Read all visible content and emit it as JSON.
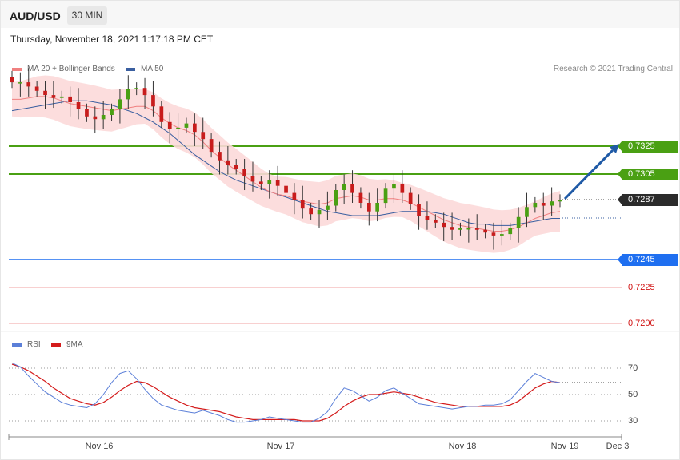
{
  "header": {
    "symbol": "AUD/USD",
    "timeframe": "30 MIN"
  },
  "datetime": "Thursday, November 18, 2021 1:17:18 PM CET",
  "legend": {
    "ma20": {
      "label": "MA 20 + Bollinger Bands",
      "color": "#f08080"
    },
    "ma50": {
      "label": "MA 50",
      "color": "#3a5fa0"
    }
  },
  "credit": "Research © 2021 Trading Central",
  "levels": {
    "r2": "0.7325",
    "r1": "0.7305",
    "last": "0.7287",
    "s1": "0.7245",
    "s2": "0.7225",
    "s3": "0.7200"
  },
  "rsi_legend": {
    "rsi": {
      "label": "RSI",
      "color": "#5b7fd8"
    },
    "ma9": {
      "label": "9MA",
      "color": "#d41c1c"
    }
  },
  "rsi_levels": [
    "70",
    "50",
    "30"
  ],
  "x_labels": [
    "Nov 16",
    "Nov 17",
    "Nov 18",
    "Nov 19",
    "Dec 3"
  ],
  "colors": {
    "up": "#4aa013",
    "down": "#c81c1c",
    "band": "#fcd9d9",
    "ma20": "#f08080",
    "ma50": "#3a5fa0",
    "arrow": "#1f5aa6",
    "resistance": "#4aa013",
    "support": "#1f6ff0",
    "support_weak": "#f2a0a0"
  },
  "chart_data": [
    {
      "type": "line",
      "title": "AUD/USD 30 MIN",
      "ylim": [
        0.7195,
        0.739
      ],
      "x_ticks": [
        "Nov 16",
        "Nov 17",
        "Nov 18",
        "Nov 19",
        "Dec 3"
      ],
      "series": [
        {
          "name": "Price (close)",
          "values": [
            0.737,
            0.737,
            0.7367,
            0.7364,
            0.7361,
            0.7359,
            0.736,
            0.7356,
            0.7351,
            0.7346,
            0.7344,
            0.7347,
            0.7351,
            0.7358,
            0.7365,
            0.7366,
            0.7361,
            0.7353,
            0.7342,
            0.7337,
            0.7338,
            0.7341,
            0.7335,
            0.733,
            0.7321,
            0.7315,
            0.7312,
            0.7309,
            0.7304,
            0.73,
            0.7298,
            0.7301,
            0.7297,
            0.7292,
            0.7287,
            0.7281,
            0.7277,
            0.728,
            0.7283,
            0.7294,
            0.7298,
            0.7292,
            0.7285,
            0.7279,
            0.7285,
            0.7295,
            0.7298,
            0.7292,
            0.7284,
            0.7276,
            0.7273,
            0.7271,
            0.7268,
            0.7266,
            0.7267,
            0.7267,
            0.7266,
            0.7264,
            0.7262,
            0.7263,
            0.7267,
            0.7275,
            0.7282,
            0.7285,
            0.7283,
            0.7286,
            0.7287
          ]
        },
        {
          "name": "MA 20",
          "values": [
            0.7358,
            0.7358,
            0.7359,
            0.736,
            0.736,
            0.7359,
            0.7357,
            0.7355,
            0.7354,
            0.7353,
            0.7352,
            0.7351,
            0.735,
            0.7351,
            0.7352,
            0.7353,
            0.7353,
            0.735,
            0.7345,
            0.7341,
            0.7338,
            0.7336,
            0.7333,
            0.7328,
            0.7322,
            0.7317,
            0.7312,
            0.7308,
            0.7304,
            0.73,
            0.7296,
            0.7293,
            0.7291,
            0.729,
            0.7288,
            0.7286,
            0.7285,
            0.7284,
            0.7285,
            0.7288,
            0.7289,
            0.729,
            0.7289,
            0.7287,
            0.7287,
            0.7288,
            0.7288,
            0.7287,
            0.7285,
            0.7282,
            0.7279,
            0.7276,
            0.7273,
            0.7271,
            0.7269,
            0.7268,
            0.7267,
            0.7266,
            0.7265,
            0.7265,
            0.7266,
            0.7268,
            0.7271,
            0.7274,
            0.7276,
            0.7278,
            0.7279
          ]
        },
        {
          "name": "MA 50",
          "values": [
            0.735,
            0.7351,
            0.7352,
            0.7353,
            0.7354,
            0.7355,
            0.7356,
            0.7357,
            0.7357,
            0.7357,
            0.7356,
            0.7355,
            0.7354,
            0.7352,
            0.735,
            0.7348,
            0.7345,
            0.7342,
            0.7338,
            0.7334,
            0.7329,
            0.7324,
            0.7319,
            0.7315,
            0.7311,
            0.7307,
            0.7304,
            0.7301,
            0.7299,
            0.7297,
            0.7295,
            0.7293,
            0.7291,
            0.7289,
            0.7287,
            0.7285,
            0.7283,
            0.7281,
            0.7279,
            0.7278,
            0.7277,
            0.7276,
            0.7276,
            0.7276,
            0.7276,
            0.7277,
            0.7278,
            0.7279,
            0.7279,
            0.7279,
            0.7279,
            0.7278,
            0.7277,
            0.7275,
            0.7273,
            0.7271,
            0.727,
            0.727,
            0.7269,
            0.7269,
            0.7269,
            0.727,
            0.7271,
            0.7272,
            0.7273,
            0.7274,
            0.7274
          ]
        }
      ],
      "horizontal_levels": [
        0.7325,
        0.7305,
        0.7287,
        0.7245,
        0.7225,
        0.72
      ],
      "annotations": [
        "0.7325",
        "0.7305",
        "0.7287",
        "0.7245",
        "0.7225",
        "0.7200"
      ]
    },
    {
      "type": "line",
      "title": "RSI",
      "ylim": [
        20,
        80
      ],
      "y_ticks": [
        70,
        50,
        30
      ],
      "series": [
        {
          "name": "RSI",
          "values": [
            74,
            71,
            64,
            58,
            52,
            48,
            44,
            42,
            41,
            40,
            43,
            50,
            59,
            66,
            68,
            62,
            54,
            47,
            42,
            40,
            38,
            37,
            36,
            38,
            36,
            34,
            31,
            29,
            29,
            30,
            31,
            33,
            32,
            31,
            30,
            29,
            29,
            32,
            37,
            47,
            55,
            53,
            49,
            45,
            48,
            53,
            55,
            51,
            47,
            43,
            42,
            41,
            40,
            39,
            40,
            41,
            41,
            42,
            42,
            43,
            46,
            53,
            60,
            66,
            63,
            60,
            59
          ]
        },
        {
          "name": "9MA",
          "values": [
            73,
            71,
            68,
            64,
            60,
            55,
            51,
            47,
            45,
            43,
            42,
            44,
            48,
            53,
            57,
            60,
            59,
            56,
            52,
            48,
            45,
            42,
            40,
            39,
            38,
            37,
            35,
            33,
            32,
            31,
            31,
            31,
            31,
            31,
            31,
            30,
            30,
            30,
            32,
            36,
            41,
            45,
            48,
            50,
            50,
            51,
            52,
            51,
            50,
            48,
            46,
            44,
            43,
            42,
            41,
            41,
            41,
            41,
            41,
            41,
            42,
            45,
            50,
            55,
            58,
            60,
            59
          ]
        }
      ]
    }
  ]
}
